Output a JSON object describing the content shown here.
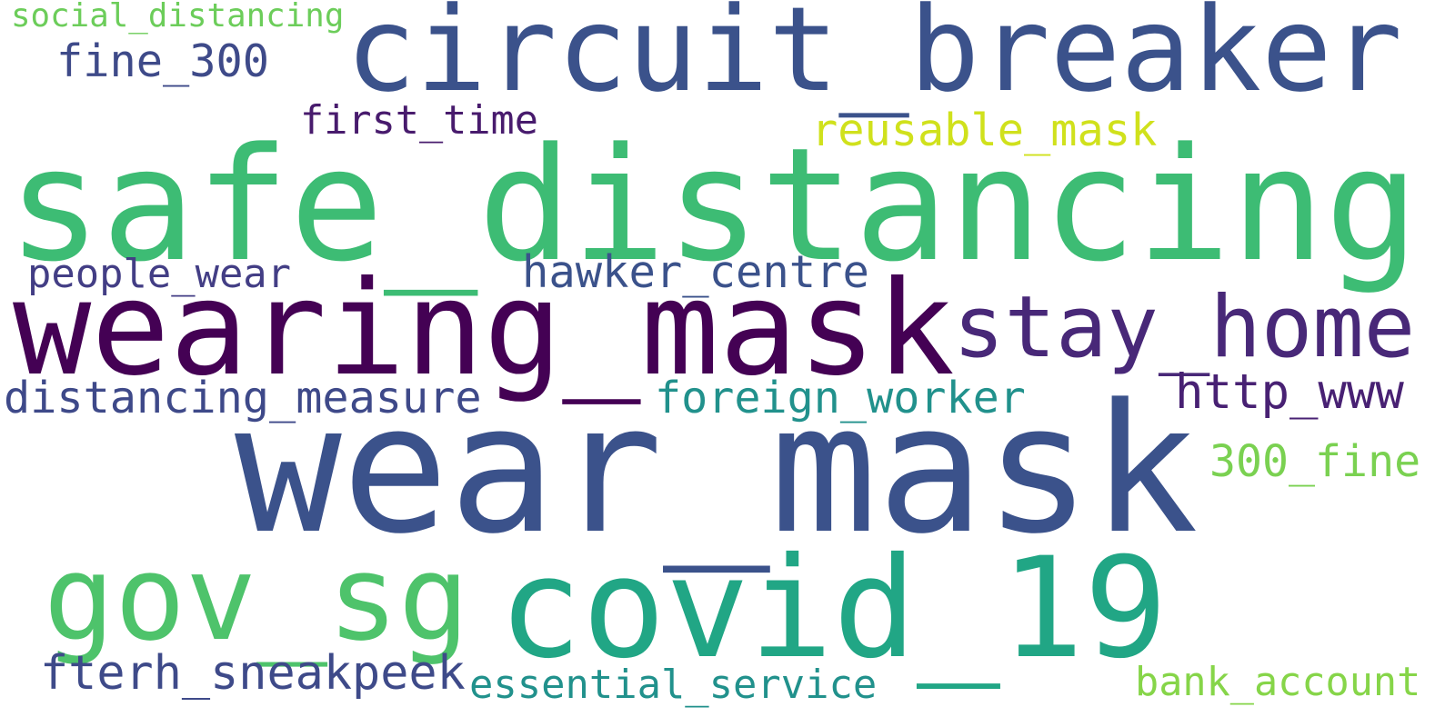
{
  "words": [
    {
      "text": "safe_distancing",
      "weight": 1.0,
      "color": "#3dbc74"
    },
    {
      "text": "wear_mask",
      "weight": 0.98,
      "color": "#3b528b"
    },
    {
      "text": "circuit_breaker",
      "weight": 0.71,
      "color": "#3b528b"
    },
    {
      "text": "wearing_mask",
      "weight": 0.69,
      "color": "#440154"
    },
    {
      "text": "covid_19",
      "weight": 0.66,
      "color": "#21a685"
    },
    {
      "text": "gov_sg",
      "weight": 0.55,
      "color": "#4ec36b"
    },
    {
      "text": "stay_home",
      "weight": 0.44,
      "color": "#482878"
    },
    {
      "text": "fterh_sneakpeek",
      "weight": 0.26,
      "color": "#3e4a89"
    },
    {
      "text": "hawker_centre",
      "weight": 0.24,
      "color": "#3b528b"
    },
    {
      "text": "distancing_measure",
      "weight": 0.24,
      "color": "#3e4989"
    },
    {
      "text": "foreign_worker",
      "weight": 0.24,
      "color": "#21918c"
    },
    {
      "text": "http_www",
      "weight": 0.24,
      "color": "#482173"
    },
    {
      "text": "essential_service",
      "weight": 0.23,
      "color": "#21918c"
    },
    {
      "text": "fine_300",
      "weight": 0.22,
      "color": "#3e4a89"
    },
    {
      "text": "first_time",
      "weight": 0.22,
      "color": "#481b6d"
    },
    {
      "text": "reusable_mask",
      "weight": 0.22,
      "color": "#d0e11c"
    },
    {
      "text": "people_wear",
      "weight": 0.21,
      "color": "#433e85"
    },
    {
      "text": "300_fine",
      "weight": 0.21,
      "color": "#7ad151"
    },
    {
      "text": "bank_account",
      "weight": 0.21,
      "color": "#86d549"
    },
    {
      "text": "social_distancing",
      "weight": 0.16,
      "color": "#6ccd5a"
    }
  ]
}
